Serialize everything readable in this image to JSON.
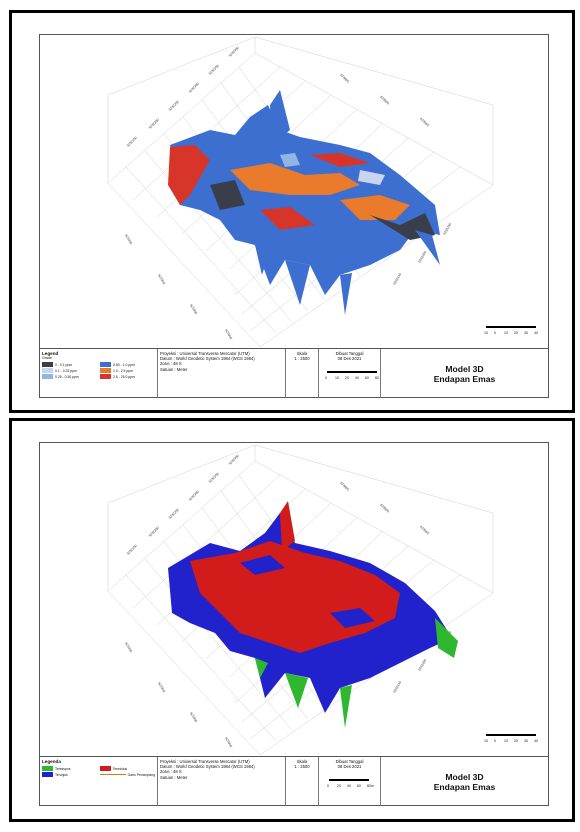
{
  "panels": [
    {
      "legend": {
        "title": "Legend",
        "subtitle": "Grade",
        "items": [
          {
            "label": "0 - 0.1 ppm",
            "color": "#3a3d4a"
          },
          {
            "label": "0.50 - 1.0 ppm",
            "color": "#3c6fd0"
          },
          {
            "label": "0.1 - 0.25 ppm",
            "color": "#c9d4ee"
          },
          {
            "label": "1.0 - 2.5 ppm",
            "color": "#ea7b2c"
          },
          {
            "label": "0.25 - 0.50 ppm",
            "color": "#8fb6e6"
          },
          {
            "label": "2.5 - 25.0 ppm",
            "color": "#d8352a"
          }
        ]
      },
      "info": {
        "projection": "Proyeksi : Universal Transverse Mercator (UTM)",
        "datum": "Datum : World Geodetic System 1984 (WGS 1984)",
        "zone": "Zone : 48 S",
        "unit": "Satuan : Meter"
      },
      "scale": {
        "label": "Skala",
        "value": "1 : 2500",
        "ticks": [
          "0",
          "10",
          "20",
          "40",
          "60",
          "80"
        ]
      },
      "date": {
        "label": "Dibuat Tanggal",
        "value": "08 Des 2021"
      },
      "title": {
        "line1": "Model 3D",
        "line2": "Endapan Emas"
      },
      "map_scale_ticks": [
        "10",
        "0",
        "10",
        "20",
        "30",
        "40"
      ]
    },
    {
      "legend": {
        "title": "Legenda",
        "items": [
          {
            "label": "Terekspos",
            "color": "#2fb82f"
          },
          {
            "label": "Tereduksi",
            "color": "#d21c1c"
          },
          {
            "label": "Terunjuk",
            "color": "#2222cc"
          }
        ],
        "line_item": {
          "label": "Garis Penampang",
          "color": "#d97a1a"
        }
      },
      "info": {
        "projection": "Proyeksi : Universal Transverse Mercator (UTM)",
        "datum": "Datum : World Geodetic System 1984 (WGS 1984)",
        "zone": "Zone : 48 S",
        "unit": "Satuan : Meter"
      },
      "scale": {
        "label": "Skala",
        "value": "1 : 2500",
        "ticks": [
          "0",
          "20",
          "40",
          "60",
          "80m"
        ]
      },
      "date": {
        "label": "Dibuat Tanggal",
        "value": "08 Des 2021"
      },
      "title": {
        "line1": "Model 3D",
        "line2": "Endapan Emas"
      },
      "map_scale_ticks": [
        "10",
        "0",
        "10",
        "20",
        "30",
        "40"
      ]
    }
  ],
  "colors": {
    "frame": "#000000",
    "grid": "#c8c8c8",
    "background": "#ffffff"
  }
}
